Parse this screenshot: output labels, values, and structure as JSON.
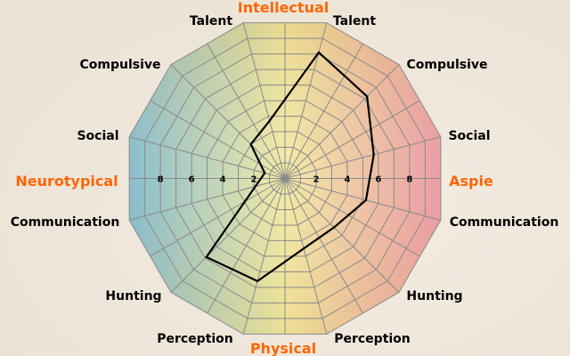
{
  "chart_data": {
    "type": "radar",
    "title": "",
    "group_labels": {
      "top": "Intellectual",
      "bottom": "Physical",
      "left": "Neurotypical",
      "right": "Aspie"
    },
    "axes": [
      "Talent",
      "Compulsive",
      "Social",
      "Communication",
      "Hunting",
      "Perception",
      "Perception",
      "Hunting",
      "Communication",
      "Social",
      "Compulsive",
      "Talent"
    ],
    "range": [
      0,
      10
    ],
    "rings": 10,
    "tick_labels": [
      "2",
      "4",
      "6",
      "8"
    ],
    "series": [
      {
        "values": [
          8.1,
          7.2,
          5.7,
          5.2,
          4.3,
          4.5,
          6.6,
          6.9,
          1.9,
          1.3,
          3.0,
          3.7
        ]
      }
    ],
    "colors": {
      "neurotypical": "#7cb6c9",
      "center": "#f1e89e",
      "aspie": "#e9939d",
      "grid": "#8a8a8a",
      "line": "#000000",
      "group_label": "#ff6600"
    }
  }
}
